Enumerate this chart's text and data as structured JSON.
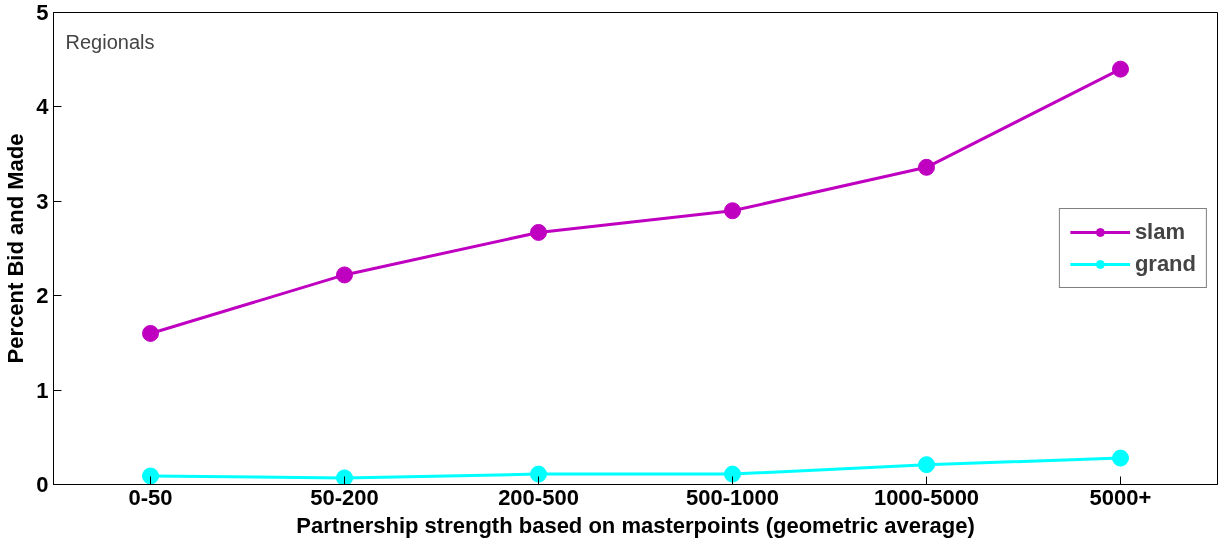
{
  "chart_data": {
    "type": "line",
    "xlabel": "Partnership strength based on masterpoints (geometric average)",
    "ylabel": "Percent Bid and Made",
    "categories": [
      "0-50",
      "50-200",
      "200-500",
      "500-1000",
      "1000-5000",
      "5000+"
    ],
    "series": [
      {
        "name": "slam",
        "color": "#c000c0",
        "values": [
          1.6,
          2.22,
          2.67,
          2.9,
          3.36,
          4.4
        ]
      },
      {
        "name": "grand",
        "color": "#00ffff",
        "values": [
          0.09,
          0.07,
          0.11,
          0.11,
          0.21,
          0.28
        ]
      }
    ],
    "ylim": [
      0,
      5
    ],
    "yticks": [
      0,
      1,
      2,
      3,
      4,
      5
    ],
    "grid": false,
    "legend": "right",
    "marker": "circle",
    "line_style": "solid",
    "annotations": [
      "Regionals"
    ]
  }
}
